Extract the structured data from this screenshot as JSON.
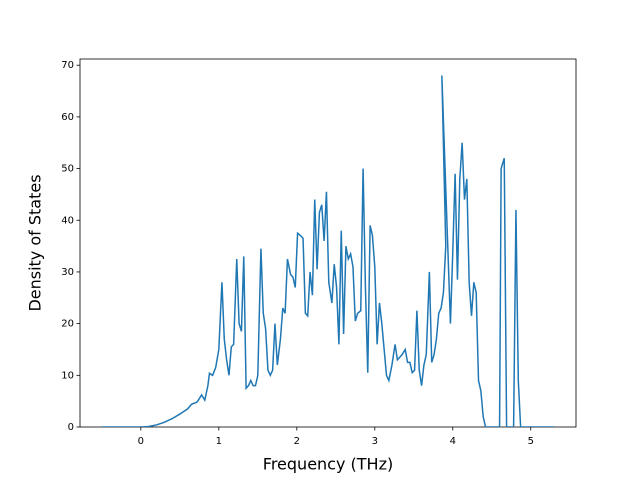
{
  "chart_data": {
    "type": "line",
    "xlabel": "Frequency (THz)",
    "ylabel": "Density of States",
    "x": [
      -0.5,
      0,
      0.1,
      0.2,
      0.3,
      0.4,
      0.5,
      0.6,
      0.65,
      0.72,
      0.78,
      0.82,
      0.86,
      0.88,
      0.92,
      0.96,
      1.0,
      1.04,
      1.07,
      1.1,
      1.13,
      1.16,
      1.19,
      1.23,
      1.26,
      1.29,
      1.32,
      1.35,
      1.38,
      1.41,
      1.44,
      1.47,
      1.5,
      1.54,
      1.57,
      1.6,
      1.63,
      1.66,
      1.69,
      1.72,
      1.75,
      1.79,
      1.82,
      1.85,
      1.88,
      1.92,
      1.95,
      1.98,
      2.01,
      2.05,
      2.08,
      2.11,
      2.14,
      2.17,
      2.2,
      2.23,
      2.26,
      2.29,
      2.32,
      2.35,
      2.38,
      2.41,
      2.45,
      2.48,
      2.51,
      2.54,
      2.57,
      2.6,
      2.63,
      2.66,
      2.69,
      2.72,
      2.75,
      2.78,
      2.82,
      2.85,
      2.88,
      2.91,
      2.94,
      2.97,
      3.0,
      3.03,
      3.06,
      3.09,
      3.12,
      3.15,
      3.18,
      3.22,
      3.26,
      3.29,
      3.32,
      3.35,
      3.39,
      3.42,
      3.45,
      3.48,
      3.51,
      3.54,
      3.57,
      3.6,
      3.63,
      3.66,
      3.7,
      3.73,
      3.76,
      3.79,
      3.82,
      3.85,
      3.88,
      3.91,
      3.86,
      3.97,
      4.0,
      4.03,
      4.06,
      4.09,
      4.12,
      4.15,
      4.18,
      4.21,
      4.24,
      4.27,
      4.3,
      4.33,
      4.36,
      4.39,
      4.42,
      4.6,
      4.62,
      4.66,
      4.69,
      4.78,
      4.81,
      4.84,
      4.87,
      5.3
    ],
    "values": [
      0,
      0,
      0.1,
      0.4,
      0.9,
      1.6,
      2.5,
      3.5,
      4.4,
      4.8,
      6.2,
      5.2,
      8,
      10.4,
      10,
      11.5,
      15,
      28,
      17,
      13,
      10,
      15.5,
      16,
      32.5,
      20,
      18.5,
      33,
      7.5,
      8,
      9,
      8,
      8,
      10,
      34.5,
      22,
      19,
      11,
      10,
      11,
      20,
      12,
      17,
      23,
      22,
      32.5,
      29.5,
      29,
      27,
      37.5,
      37,
      36.5,
      22,
      21.5,
      30,
      25.5,
      44,
      30.5,
      41.5,
      43,
      36,
      45.5,
      28,
      24,
      31.5,
      27,
      16,
      38,
      18,
      35,
      32.5,
      33.5,
      31,
      20.5,
      22,
      22.5,
      50,
      27,
      10.5,
      39,
      37,
      31,
      16,
      24,
      20,
      15,
      10,
      9,
      12,
      16,
      13,
      13.5,
      14,
      15,
      12.5,
      12.5,
      10.5,
      11,
      22.5,
      11,
      8,
      12,
      14,
      30,
      12.5,
      14,
      17,
      22,
      23,
      26,
      35,
      68,
      20,
      34,
      49,
      28.5,
      48,
      55,
      44,
      48,
      28,
      21.5,
      28,
      26,
      9,
      7,
      2,
      0,
      0,
      50,
      52,
      0,
      0,
      42,
      9,
      0,
      0
    ],
    "color": "#1f77b4",
    "xlim": [
      -0.78,
      5.58
    ],
    "ylim": [
      0,
      71.2
    ],
    "xticks": [
      0,
      1,
      2,
      3,
      4,
      5
    ],
    "yticks": [
      0,
      10,
      20,
      30,
      40,
      50,
      60,
      70
    ]
  }
}
